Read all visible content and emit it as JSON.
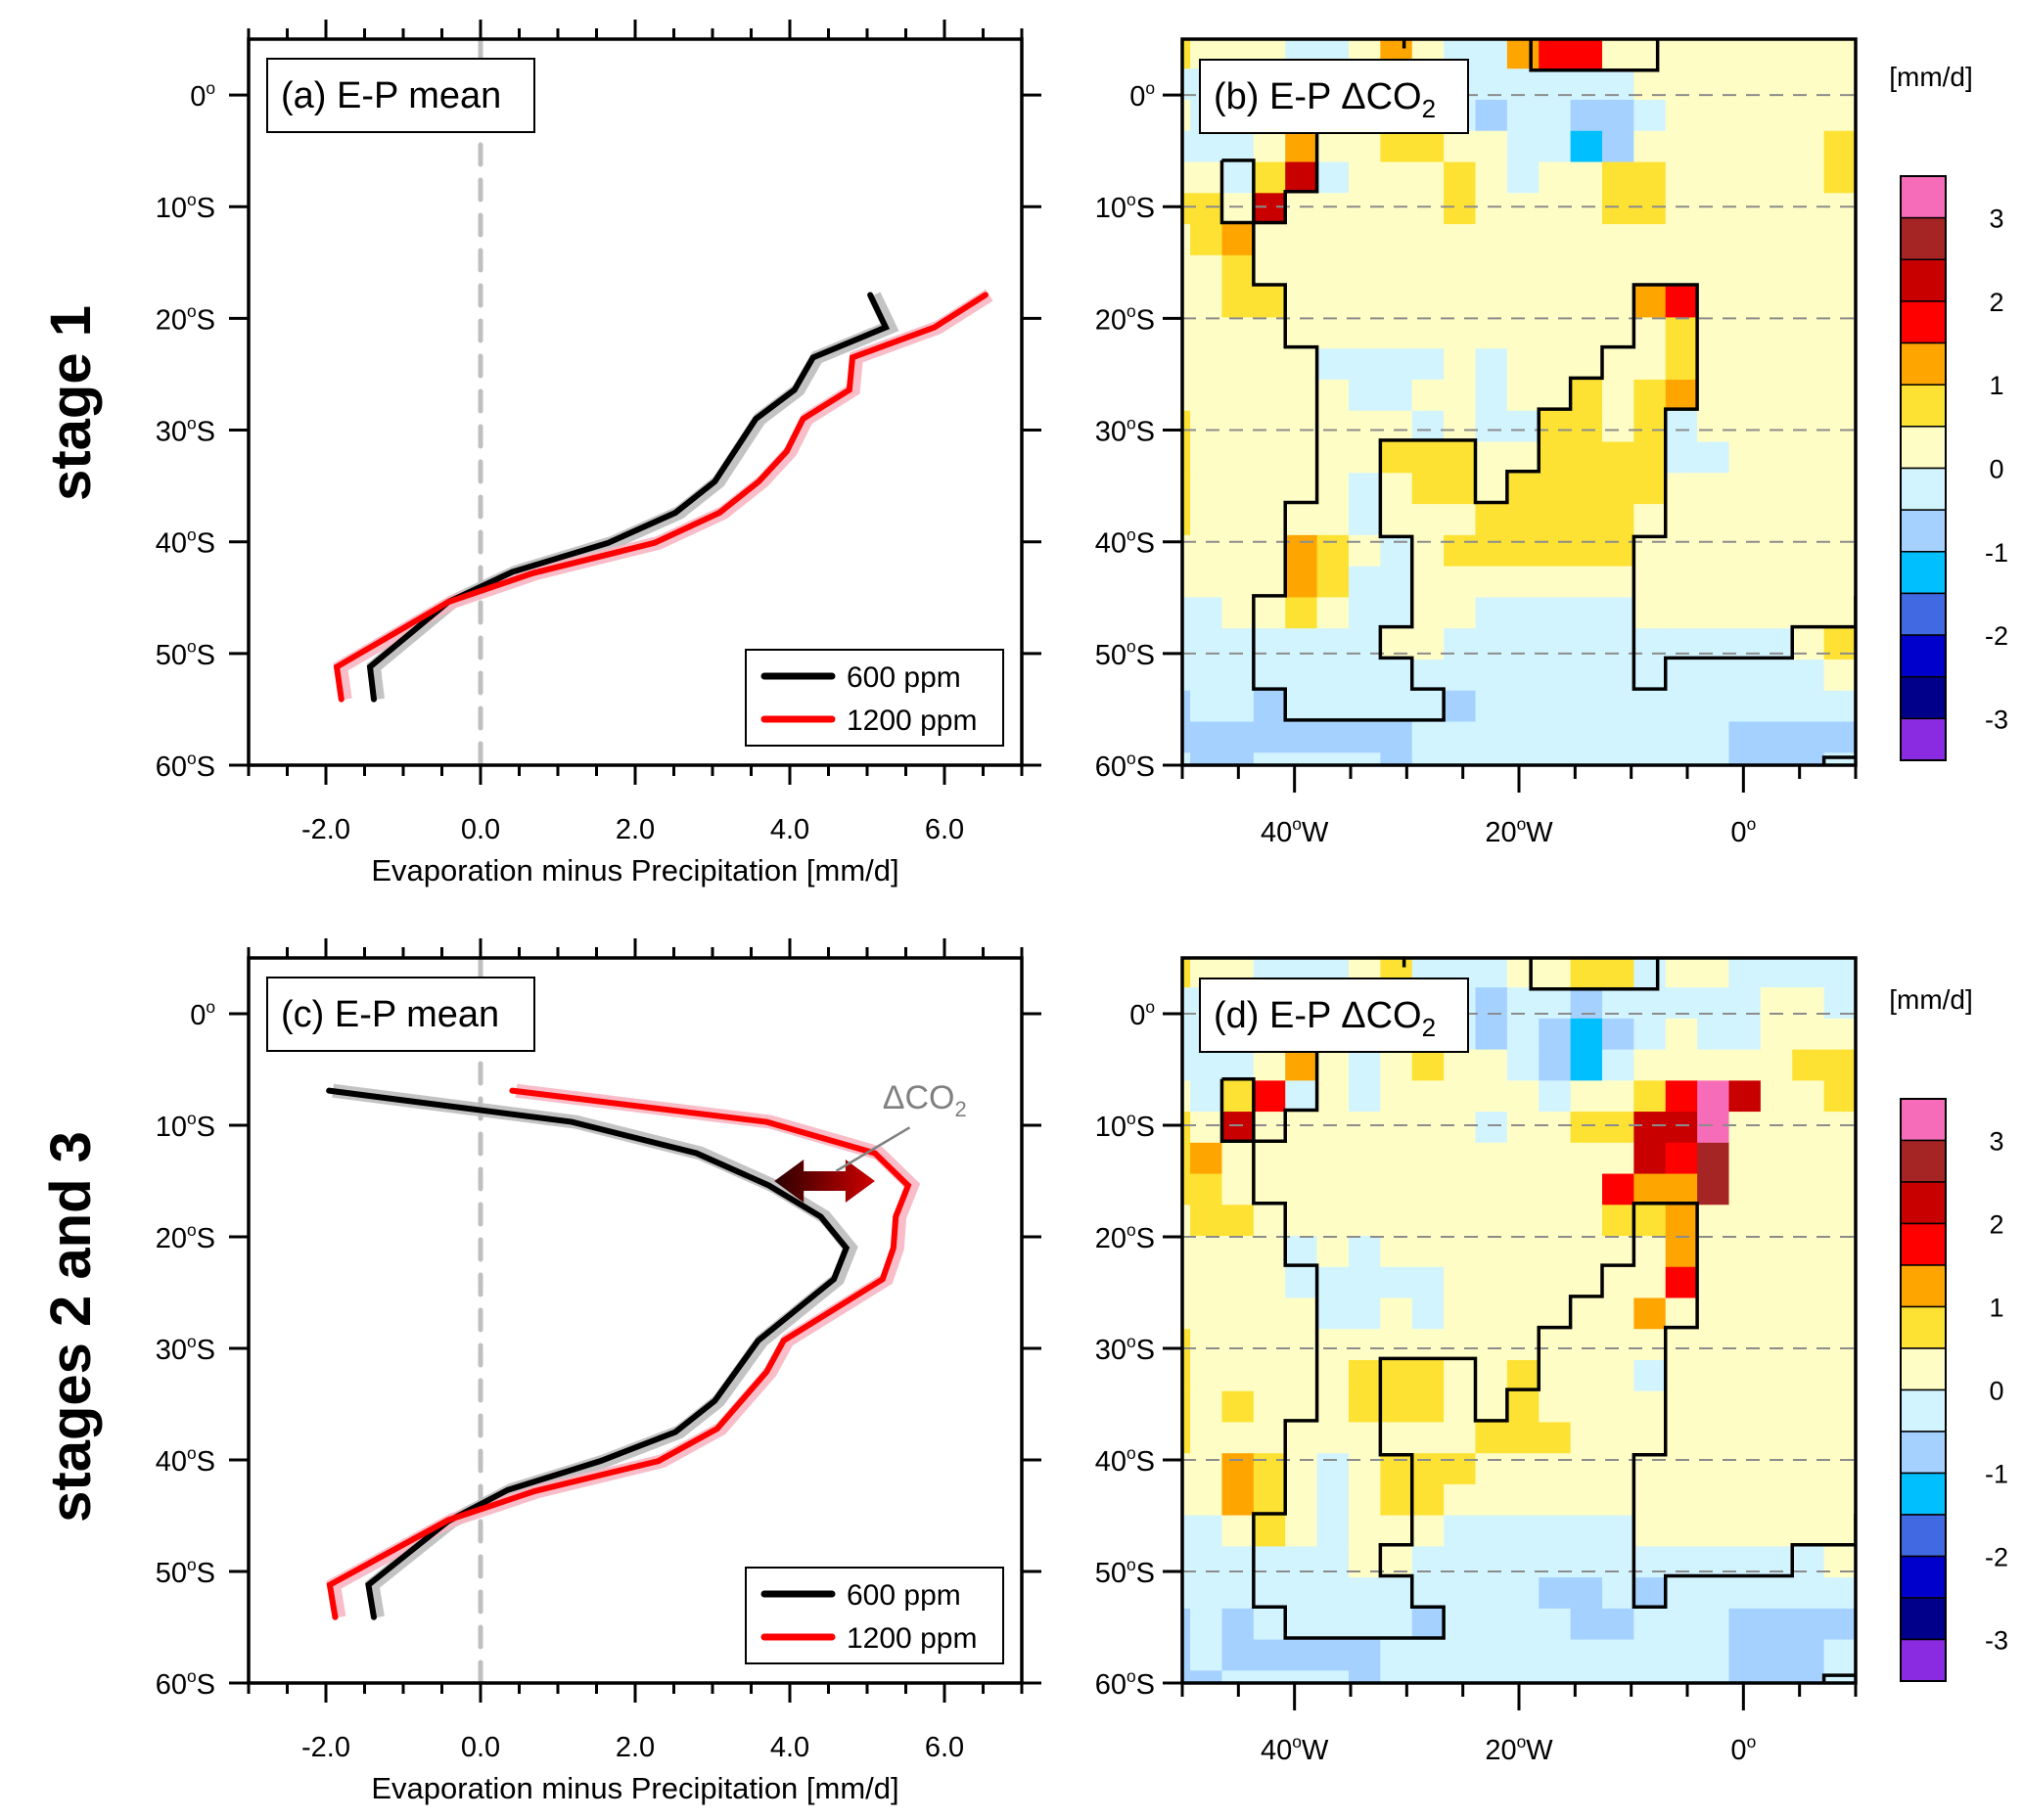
{
  "row_labels": [
    "stage 1",
    "stages 2 and 3"
  ],
  "colors": {
    "line_600": "#000000",
    "line_1200": "#ff0000",
    "spread_600": "#bdbdbd",
    "spread_1200": "#f7b6c2",
    "zero_line": "#bfbfbf",
    "arrow_dark": "#2a0000",
    "arrow_light": "#d10000",
    "annotation": "#808080",
    "grid_dash": "#8c8c8c"
  },
  "chart_data": [
    {
      "id": "a",
      "type": "line",
      "title": "(a) E-P mean",
      "xlabel": "Evaporation minus Precipitation [mm/d]",
      "ylabel": "",
      "xlim": [
        -3,
        7
      ],
      "ylim": [
        -60,
        5
      ],
      "xticks": [
        -2,
        0,
        2,
        4,
        6
      ],
      "xtick_labels": [
        "-2.0",
        "0.0",
        "2.0",
        "4.0",
        "6.0"
      ],
      "yticks": [
        0,
        -10,
        -20,
        -30,
        -40,
        -50,
        -60
      ],
      "ytick_labels": [
        "0°",
        "10°S",
        "20°S",
        "30°S",
        "40°S",
        "50°S",
        "60°S"
      ],
      "legend": {
        "position": "bottom-right",
        "entries": [
          "600 ppm",
          "1200 ppm"
        ]
      },
      "series": [
        {
          "name": "600 ppm",
          "lat": [
            -17.9,
            -20.8,
            -23.5,
            -26.4,
            -29.0,
            -34.6,
            -37.4,
            -40.1,
            -42.7,
            -45.4,
            -51.2,
            -54.1
          ],
          "values": [
            5.04,
            5.24,
            4.3,
            4.06,
            3.56,
            3.03,
            2.52,
            1.65,
            0.41,
            -0.42,
            -1.43,
            -1.38
          ]
        },
        {
          "name": "1200 ppm",
          "lat": [
            -17.9,
            -20.8,
            -23.5,
            -26.4,
            -29.0,
            -31.9,
            -34.6,
            -37.4,
            -40.1,
            -42.8,
            -45.4,
            -51.2,
            -54.1
          ],
          "values": [
            6.53,
            5.87,
            4.81,
            4.77,
            4.17,
            3.96,
            3.6,
            3.09,
            2.25,
            0.68,
            -0.42,
            -1.86,
            -1.8
          ]
        }
      ]
    },
    {
      "id": "c",
      "type": "line",
      "title": "(c) E-P mean",
      "xlabel": "Evaporation minus Precipitation [mm/d]",
      "ylabel": "",
      "xlim": [
        -3,
        7
      ],
      "ylim": [
        -60,
        5
      ],
      "xticks": [
        -2,
        0,
        2,
        4,
        6
      ],
      "xtick_labels": [
        "-2.0",
        "0.0",
        "2.0",
        "4.0",
        "6.0"
      ],
      "yticks": [
        0,
        -10,
        -20,
        -30,
        -40,
        -50,
        -60
      ],
      "ytick_labels": [
        "0°",
        "10°S",
        "20°S",
        "30°S",
        "40°S",
        "50°S",
        "60°S"
      ],
      "legend": {
        "position": "bottom-right",
        "entries": [
          "600 ppm",
          "1200 ppm"
        ]
      },
      "annotation": {
        "text": "ΔCO",
        "subscript": "2",
        "arrow_lat": -15.0,
        "arrow_from": 3.8,
        "arrow_to": 5.1
      },
      "series": [
        {
          "name": "600 ppm",
          "lat": [
            -6.9,
            -9.7,
            -12.5,
            -15.4,
            -18.2,
            -21.0,
            -23.8,
            -29.3,
            -34.7,
            -37.5,
            -40.1,
            -42.7,
            -45.5,
            -51.2,
            -54.1
          ],
          "values": [
            -1.96,
            1.18,
            2.79,
            3.73,
            4.4,
            4.73,
            4.57,
            3.59,
            3.03,
            2.52,
            1.55,
            0.35,
            -0.42,
            -1.45,
            -1.38
          ]
        },
        {
          "name": "1200 ppm",
          "lat": [
            -6.9,
            -9.7,
            -12.5,
            -15.4,
            -18.2,
            -21.0,
            -23.8,
            -29.3,
            -32.1,
            -37.2,
            -40.1,
            -42.8,
            -45.4,
            -51.2,
            -54.1
          ],
          "values": [
            0.41,
            3.7,
            5.1,
            5.53,
            5.37,
            5.34,
            5.2,
            3.92,
            3.7,
            3.06,
            2.3,
            0.7,
            -0.42,
            -1.95,
            -1.88
          ]
        }
      ]
    },
    {
      "id": "b",
      "type": "heatmap",
      "title": "(b) E-P ΔCO",
      "title_sub": "2",
      "xlim": [
        -50,
        10
      ],
      "ylim": [
        -60,
        5
      ],
      "xticks": [
        -40,
        -20,
        0
      ],
      "xtick_labels": [
        "40°W",
        "20°W",
        "0°"
      ],
      "yticks": [
        0,
        -10,
        -20,
        -30,
        -40,
        -50,
        -60
      ],
      "ytick_labels": [
        "0°",
        "10°S",
        "20°S",
        "30°S",
        "40°S",
        "50°S",
        "60°S"
      ],
      "colorbar": {
        "units": "[mm/d]",
        "ticks": [
          "3",
          "2",
          "1",
          "0",
          "-1",
          "-2",
          "-3"
        ]
      },
      "grid": [
        "YLLLCCLOLCCORRLLLLLLLL",
        "CCCCCCCCCCCCCCCLLLLLLL",
        "LCCCCCCCCCSCCSSCLLLLLL",
        "CCCLOLLYYLLCCASLLLLLLY",
        "LLCYDCLLLYLCLLYYLLLLLY",
        "YYLDLLLLLYLLLLYYLLLLLL",
        "LYOLLLLLLLLLLLLLLLLLLL",
        "LLYLLLLLLLLLLLLLLLLLLL",
        "LLYYLLLLLLLLLLLORLLLLL",
        "LLLLLLLLLLLLLLLLYLLLLL",
        "LLLLLCCCCLCLLLLLYLLLLL",
        "LLLLLLCCLLCLLYLYOLLLLL",
        "YLLLLLLLCLCCYYLYCLLLLL",
        "YLLLLLLYYYLLYYYYCCLLLL",
        "YLLLLLCLYYLYYYYYLLLLLL",
        "YLLLLLCLLLYYYYYLLLLLLL",
        "LLLLOYLCLYYYYYYLLLLLLL",
        "LLLLOYCCLLLLLLLLLLLLLL",
        "CCLLYLCCLLCCCCCLLLLLLL",
        "CCCCCCCLLCCCCCCCCCCCLY",
        "CCCCCCCCCCCCCCCCCCCCCL",
        "SCCSCCCCCSCCCCCCCCCCCC",
        "SSSSSSSSCCCCCCCCCCSSSS",
        "CSSCCCCSCCCCCCCCCCSSSC"
      ]
    },
    {
      "id": "d",
      "type": "heatmap",
      "title": "(d) E-P ΔCO",
      "title_sub": "2",
      "xlim": [
        -50,
        10
      ],
      "ylim": [
        -60,
        5
      ],
      "xticks": [
        -40,
        -20,
        0
      ],
      "xtick_labels": [
        "40°W",
        "20°W",
        "0°"
      ],
      "yticks": [
        0,
        -10,
        -20,
        -30,
        -40,
        -50,
        -60
      ],
      "ytick_labels": [
        "0°",
        "10°S",
        "20°S",
        "30°S",
        "40°S",
        "50°S",
        "60°S"
      ],
      "colorbar": {
        "units": "[mm/d]",
        "ticks": [
          "3",
          "2",
          "1",
          "0",
          "-1",
          "-2",
          "-3"
        ]
      },
      "grid": [
        "YLLCCCLYCCCLLYYCLLCCCC",
        "CCCCCCCCCCSCCSCCCCCLLC",
        "CCCCCCCCCCSCSASCLCCLLL",
        "CCCLOLCLYLLCSACLLLLLYY",
        "LCYRCLCLLLLLCLLYRPDLLY",
        "YLDLLLLLLLCLLYYDDPLLLL",
        "YOLLLLLLLLLLLLLDRBLLLL",
        "YYLLLLLLLLLLLLROOBLLLL",
        "LYYLLLLLLLLLLLYYOLLLLL",
        "LLLLCLCLLLLLLLLLOLLLLL",
        "LLLLCCCCCLLLLLLLRLLLLL",
        "LLLLLCCLCLLLLLLOLLLLLL",
        "YLLLLLLLLLLLLLLLLLLLLL",
        "YLLLLLYYYLLYLLLCLLLLLL",
        "YLYLLLYYYLLYLLLLLLLLLL",
        "YLLLLLLLLLYYYLLLLLLLLL",
        "LLOYLCLYYYLLLLLLLLLLLL",
        "LLOYLCLYYLLLLLLLLLLLLL",
        "CCLYLCLLLCCCCCCLLLLLLL",
        "CCCCCCLLCCCCCCCCCCCCCL",
        "CCCCCCCCCCCCSSCSCCCCCC",
        "SCSCCCCCSCCCCSSCCCSSSS",
        "SCSSSSSCCCCCCCCCCCSSSC",
        "SSCCCCSCCCCCCCCCCCSSSC"
      ]
    }
  ],
  "colorbar_levels": [
    {
      "code": "P",
      "label": "> 3.0",
      "color": "#f76cb8"
    },
    {
      "code": "B",
      "label": "2.5 to 3.0",
      "color": "#a52424"
    },
    {
      "code": "D",
      "label": "2.0 to 2.5",
      "color": "#c80000"
    },
    {
      "code": "R",
      "label": "1.5 to 2.0",
      "color": "#ff0000"
    },
    {
      "code": "O",
      "label": "1.0 to 1.5",
      "color": "#ffa500"
    },
    {
      "code": "Y",
      "label": "0.5 to 1.0",
      "color": "#fde234"
    },
    {
      "code": "L",
      "label": "0.0 to 0.5",
      "color": "#fffdc6"
    },
    {
      "code": "C",
      "label": "-0.5 to 0.0",
      "color": "#d2f4ff"
    },
    {
      "code": "S",
      "label": "-1.0 to -0.5",
      "color": "#a4d1ff"
    },
    {
      "code": "A",
      "label": "-1.5 to -1.0",
      "color": "#00bfff"
    },
    {
      "code": "E",
      "label": "-2.0 to -1.5",
      "color": "#4169e1"
    },
    {
      "code": "N",
      "label": "-2.5 to -2.0",
      "color": "#0000cd"
    },
    {
      "code": "K",
      "label": "-3.0 to -2.5",
      "color": "#00008b"
    },
    {
      "code": "V",
      "label": "< -3.0",
      "color": "#8a2be2"
    }
  ]
}
